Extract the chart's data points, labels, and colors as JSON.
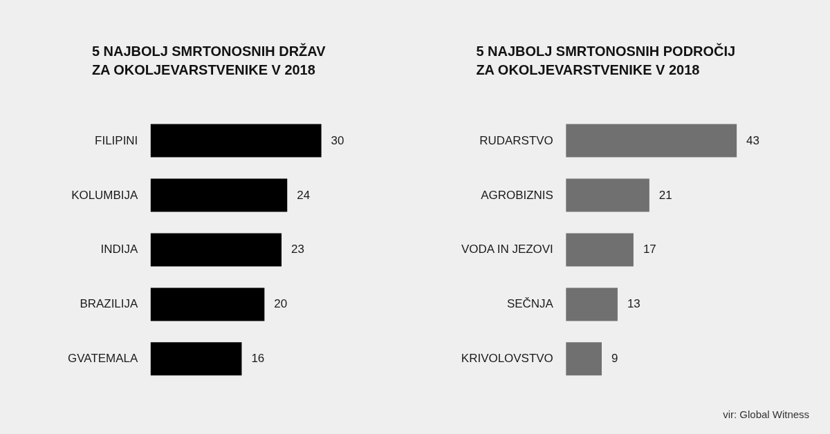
{
  "chart_data": [
    {
      "type": "bar",
      "orientation": "horizontal",
      "title": "5 NAJBOLJ SMRTONOSNIH DRŽAV ZA OKOLJEVARSTVENIKE V 2018",
      "categories": [
        "FILIPINI",
        "KOLUMBIJA",
        "INDIJA",
        "BRAZILIJA",
        "GVATEMALA"
      ],
      "values": [
        30,
        24,
        23,
        20,
        16
      ],
      "color": "#000000",
      "data_labels": true
    },
    {
      "type": "bar",
      "orientation": "horizontal",
      "title": "5 NAJBOLJ SMRTONOSNIH PODROČIJ ZA OKOLJEVARSTVENIKE V 2018",
      "categories": [
        "RUDARSTVO",
        "AGROBIZNIS",
        "VODA IN JEZOVI",
        "SEČNJA",
        "KRIVOLOVSTVO"
      ],
      "values": [
        43,
        21,
        17,
        13,
        9
      ],
      "color": "#707070",
      "data_labels": true,
      "annotations": [
        "vir: Global Witness"
      ]
    }
  ]
}
